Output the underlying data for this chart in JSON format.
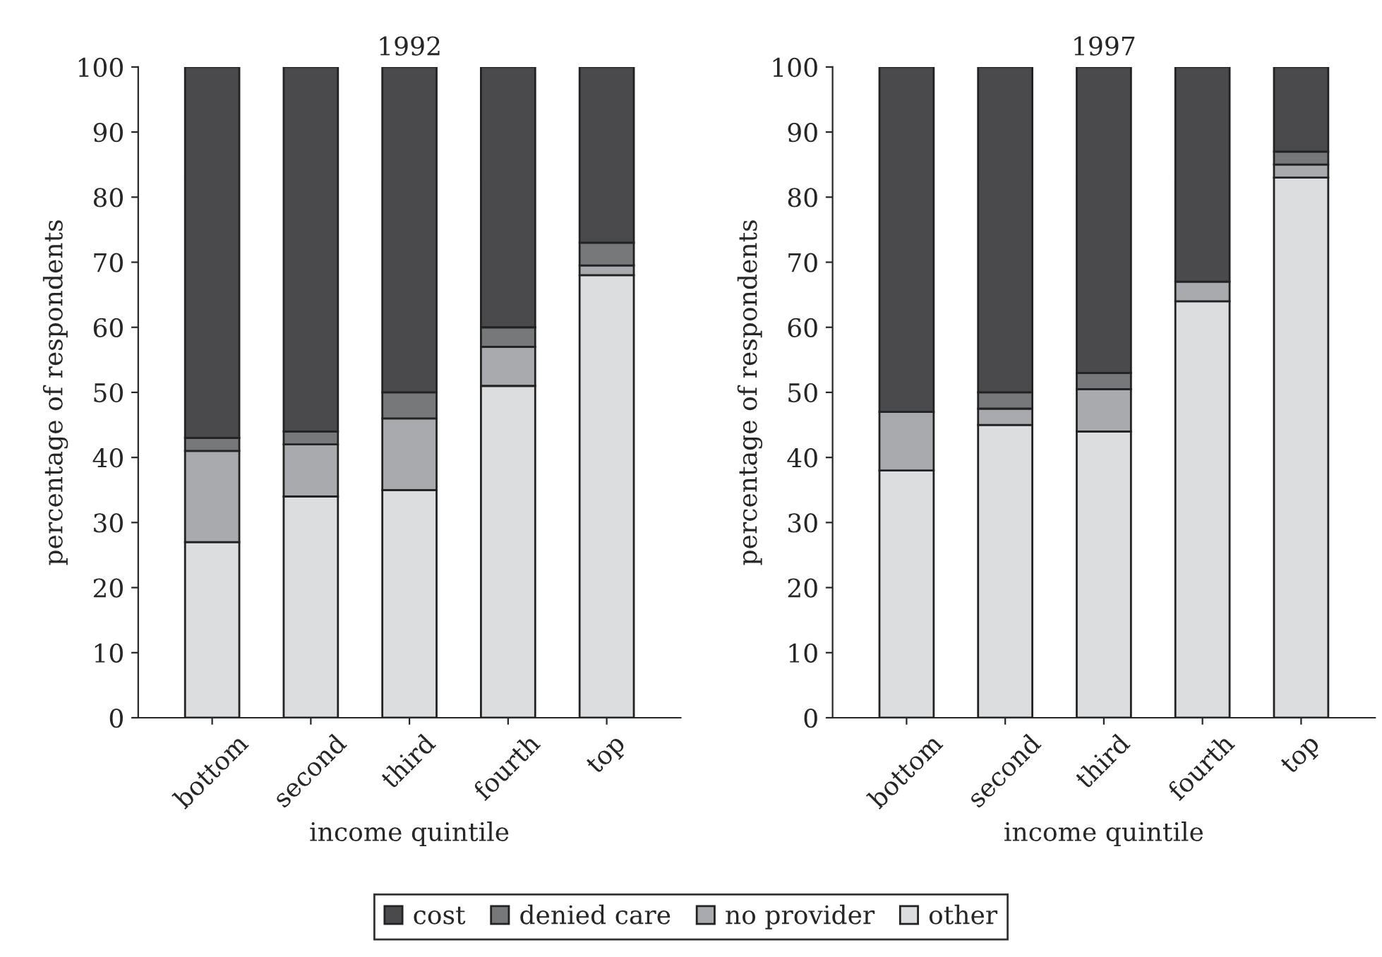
{
  "chart_data": [
    {
      "type": "bar",
      "title": "1992",
      "xlabel": "income quintile",
      "ylabel": "percentage of respondents",
      "stacked": true,
      "legend": "bottom",
      "grid": false,
      "categories": [
        "bottom",
        "second",
        "third",
        "fourth",
        "top"
      ],
      "ylim": [
        0,
        100
      ],
      "yticks": [
        0,
        10,
        20,
        30,
        40,
        50,
        60,
        70,
        80,
        90,
        100
      ],
      "series": [
        {
          "name": "other",
          "color": "#dcdddf",
          "values": [
            27,
            34,
            35,
            51,
            68
          ]
        },
        {
          "name": "no provider",
          "color": "#a9aaad",
          "values": [
            14,
            8,
            11,
            6,
            1.5
          ]
        },
        {
          "name": "denied care",
          "color": "#777879",
          "values": [
            2,
            2,
            4,
            3,
            3.5
          ]
        },
        {
          "name": "cost",
          "color": "#4a4a4c",
          "values": [
            57,
            56,
            50,
            40,
            27
          ]
        }
      ]
    },
    {
      "type": "bar",
      "title": "1997",
      "xlabel": "income quintile",
      "ylabel": "percentage of respondents",
      "stacked": true,
      "grid": false,
      "categories": [
        "bottom",
        "second",
        "third",
        "fourth",
        "top"
      ],
      "ylim": [
        0,
        100
      ],
      "yticks": [
        0,
        10,
        20,
        30,
        40,
        50,
        60,
        70,
        80,
        90,
        100
      ],
      "series": [
        {
          "name": "other",
          "color": "#dcdddf",
          "values": [
            38,
            45,
            44,
            64,
            83
          ]
        },
        {
          "name": "no provider",
          "color": "#a9aaad",
          "values": [
            9,
            2.5,
            6.5,
            3,
            2
          ]
        },
        {
          "name": "denied care",
          "color": "#777879",
          "values": [
            0,
            2.5,
            2.5,
            0,
            2
          ]
        },
        {
          "name": "cost",
          "color": "#4a4a4c",
          "values": [
            53,
            50,
            47,
            33,
            13
          ]
        }
      ]
    }
  ]
}
